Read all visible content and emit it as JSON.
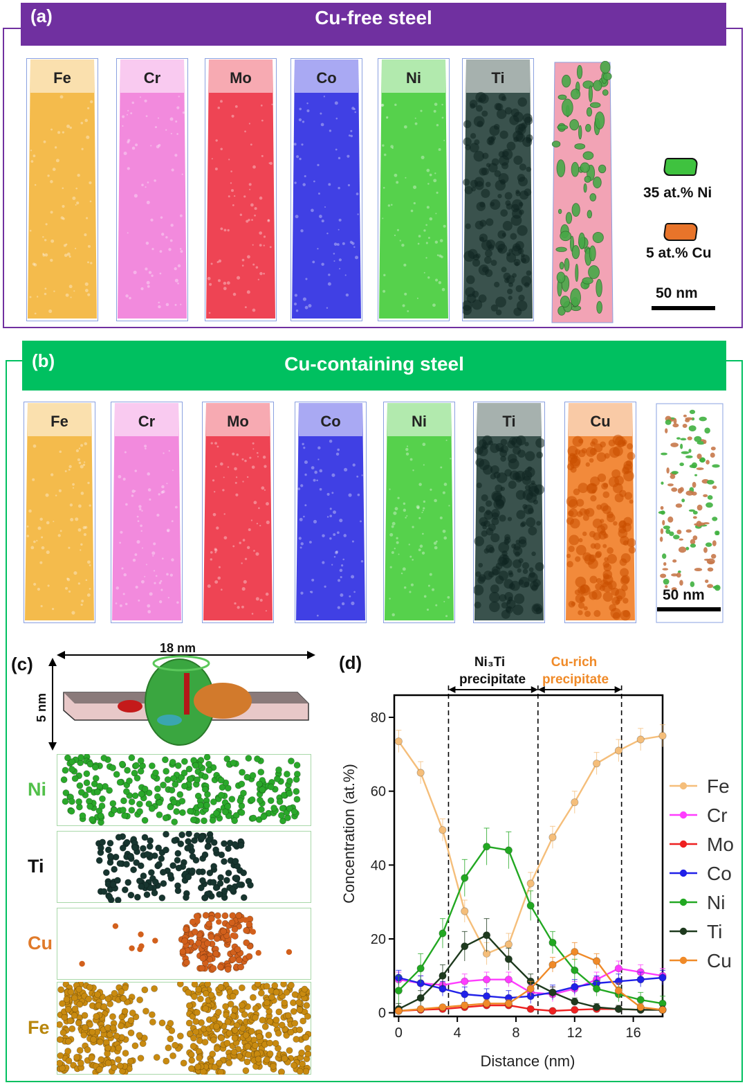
{
  "panel_a": {
    "tag": "(a)",
    "title": "Cu-free steel",
    "tips": [
      {
        "label": "Fe",
        "color": "#f2b233"
      },
      {
        "label": "Cr",
        "color": "#f07ad8"
      },
      {
        "label": "Mo",
        "color": "#ec2a3c"
      },
      {
        "label": "Co",
        "color": "#2626e0"
      },
      {
        "label": "Ni",
        "color": "#3fcb33"
      },
      {
        "label": "Ti",
        "color": "#1f3a34"
      }
    ],
    "legend": {
      "ni_iso": "35 at.% Ni",
      "cu_iso": "5 at.% Cu",
      "scale": "50 nm"
    },
    "colors": {
      "banner": "#7030a0",
      "ni_iso": "#3fc23f",
      "cu_iso": "#e8742a"
    }
  },
  "panel_b": {
    "tag": "(b)",
    "title": "Cu-containing steel",
    "tips": [
      {
        "label": "Fe",
        "color": "#f2b233"
      },
      {
        "label": "Cr",
        "color": "#f07ad8"
      },
      {
        "label": "Mo",
        "color": "#ec2a3c"
      },
      {
        "label": "Co",
        "color": "#2626e0"
      },
      {
        "label": "Ni",
        "color": "#3fcb33"
      },
      {
        "label": "Ti",
        "color": "#1f3a34"
      },
      {
        "label": "Cu",
        "color": "#f07a20"
      }
    ],
    "scale": "50 nm",
    "colors": {
      "banner": "#00c060"
    }
  },
  "panel_c": {
    "tag": "(c)",
    "width_label": "18 nm",
    "height_label": "5 nm",
    "maps": [
      {
        "label": "Ni",
        "color": "#2aa82a",
        "label_color": "#52c04a"
      },
      {
        "label": "Ti",
        "color": "#17352f",
        "label_color": "#111111"
      },
      {
        "label": "Cu",
        "color": "#d2601c",
        "label_color": "#e07a2a"
      },
      {
        "label": "Fe",
        "color": "#c88a10",
        "label_color": "#b8860b"
      }
    ]
  },
  "panel_d": {
    "tag": "(d)",
    "region_ni3ti": [
      "Ni₃Ti",
      "precipitate"
    ],
    "region_cu": [
      "Cu-rich",
      "precipitate"
    ]
  },
  "chart_data": {
    "type": "line",
    "xlabel": "Distance (nm)",
    "ylabel": "Concentration (at.%)",
    "xlim": [
      -0.3,
      18
    ],
    "ylim": [
      -1,
      86
    ],
    "xticks": [
      0,
      4,
      8,
      12,
      16
    ],
    "yticks": [
      0,
      20,
      40,
      60,
      80
    ],
    "x": [
      0,
      1.5,
      3,
      4.5,
      6,
      7.5,
      9,
      10.5,
      12,
      13.5,
      15,
      16.5,
      18
    ],
    "region_boundaries": [
      3.4,
      9.5,
      15.2
    ],
    "legend_position": "right",
    "series": [
      {
        "name": "Fe",
        "color": "#f5be7a",
        "values": [
          73.5,
          65,
          49.5,
          27.5,
          16,
          18.5,
          35,
          47.5,
          57,
          67.5,
          71,
          74,
          75
        ],
        "err": [
          3,
          3,
          3,
          3,
          3,
          3,
          3,
          3,
          3,
          3,
          3,
          3,
          3
        ]
      },
      {
        "name": "Cr",
        "color": "#ff3cff",
        "values": [
          9,
          8,
          7.5,
          8.5,
          9,
          9,
          5.5,
          5,
          6.5,
          9,
          12,
          11,
          10
        ],
        "err": [
          2,
          2,
          2,
          2,
          2,
          2,
          2,
          2,
          2,
          2,
          2,
          2,
          2
        ]
      },
      {
        "name": "Mo",
        "color": "#ee2020",
        "values": [
          0.5,
          0.8,
          1,
          1.5,
          2,
          2,
          1,
          0.5,
          0.8,
          1,
          1,
          0.8,
          0.8
        ],
        "err": [
          0.5,
          0.5,
          0.5,
          0.5,
          0.5,
          0.5,
          0.5,
          0.5,
          0.5,
          0.5,
          0.5,
          0.5,
          0.5
        ]
      },
      {
        "name": "Co",
        "color": "#2020e8",
        "values": [
          9.5,
          8,
          6.5,
          5,
          4.5,
          4,
          4.5,
          5.5,
          7,
          8,
          8.5,
          9,
          9.5
        ],
        "err": [
          2,
          2,
          2,
          2,
          2,
          2,
          2,
          2,
          2,
          2,
          2,
          2,
          2
        ]
      },
      {
        "name": "Ni",
        "color": "#22a822",
        "values": [
          6,
          12,
          21.5,
          36.5,
          45,
          44,
          29,
          19,
          11.5,
          6.5,
          5,
          3.5,
          2.5
        ],
        "err": [
          4,
          4,
          4,
          5,
          5,
          5,
          4,
          3,
          3,
          2,
          2,
          2,
          2
        ]
      },
      {
        "name": "Ti",
        "color": "#1e3a1e",
        "values": [
          1,
          4,
          10,
          18,
          21,
          14.5,
          8.5,
          5.5,
          3,
          1.5,
          1,
          0.8,
          0.8
        ],
        "err": [
          1.5,
          2,
          3,
          4,
          4.5,
          3,
          2,
          1.5,
          1,
          1,
          1,
          1,
          1
        ]
      },
      {
        "name": "Cu",
        "color": "#f08a28",
        "values": [
          0.5,
          1,
          1.5,
          2,
          2.5,
          2.5,
          6.5,
          13,
          16.5,
          14,
          6,
          1.5,
          0.8
        ],
        "err": [
          0.5,
          0.5,
          0.5,
          0.8,
          1,
          1,
          2,
          2,
          2.5,
          2,
          2,
          1,
          0.5
        ]
      }
    ]
  }
}
